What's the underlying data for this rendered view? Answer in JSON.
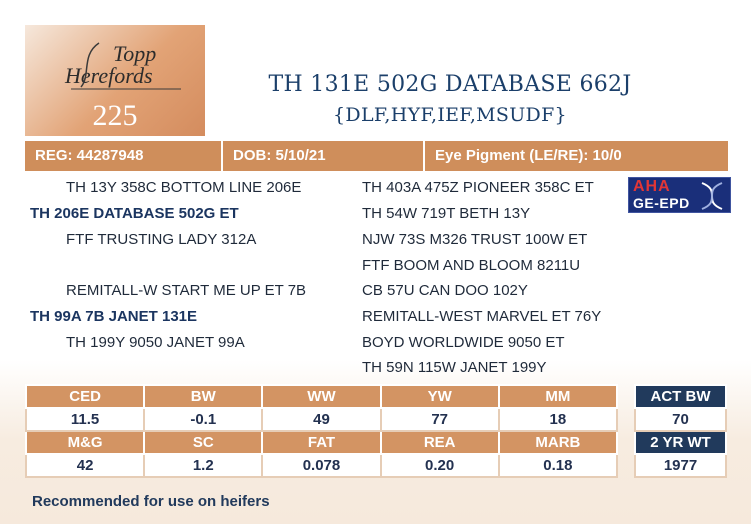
{
  "logo": {
    "line1": "Topp",
    "line2": "Herefords"
  },
  "lot_number": "225",
  "title": {
    "name": "TH 131E 502G DATABASE 662J",
    "designations": "{DLF,HYF,IEF,MSUDF}"
  },
  "info": {
    "reg": "REG: 44287948",
    "dob": "DOB: 5/10/21",
    "eye": "Eye Pigment (LE/RE): 10/0"
  },
  "pedigree": {
    "sire_sire": "TH 13Y 358C BOTTOM LINE 206E",
    "sire": "TH 206E DATABASE 502G ET",
    "sire_dam": "FTF TRUSTING LADY 312A",
    "dam_sire": "REMITALL-W START ME UP ET 7B",
    "dam": "TH 99A 7B JANET 131E",
    "dam_dam": "TH 199Y 9050 JANET 99A",
    "r1": "TH 403A 475Z PIONEER 358C ET",
    "r2": "TH 54W 719T BETH 13Y",
    "r3": "NJW 73S M326 TRUST 100W ET",
    "r4": "FTF BOOM AND BLOOM 8211U",
    "r5": "CB 57U CAN DOO 102Y",
    "r6": "REMITALL-WEST MARVEL ET 76Y",
    "r7": "BOYD WORLDWIDE 9050 ET",
    "r8": "TH 59N 115W JANET 199Y"
  },
  "badge": {
    "line1": "AHA",
    "line2": "GE-EPD"
  },
  "epd": {
    "row1_headers": [
      "CED",
      "BW",
      "WW",
      "YW",
      "MM"
    ],
    "row1_values": [
      "11.5",
      "-0.1",
      "49",
      "77",
      "18"
    ],
    "row2_headers": [
      "M&G",
      "SC",
      "FAT",
      "REA",
      "MARB"
    ],
    "row2_values": [
      "42",
      "1.2",
      "0.078",
      "0.20",
      "0.18"
    ]
  },
  "actual": {
    "h1": "ACT BW",
    "v1": "70",
    "h2": "2 YR WT",
    "v2": "1977"
  },
  "note": "Recommended for use on heifers",
  "colors": {
    "accent": "#cf8e5b",
    "navy": "#213a5c",
    "title": "#1b3f6a"
  }
}
